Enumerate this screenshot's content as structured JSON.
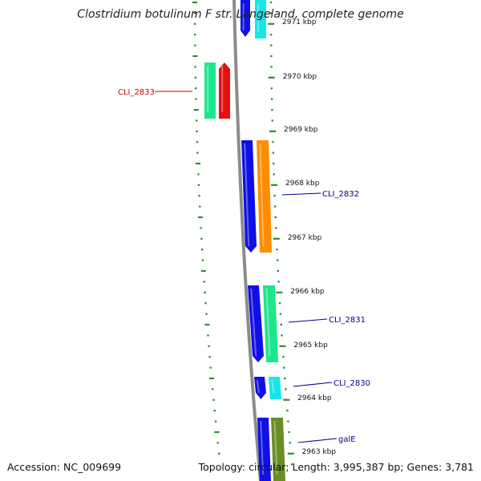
{
  "title": "Clostridium botulinum F str. Langeland, complete genome",
  "footer": {
    "accession": "Accession: NC_009699",
    "stats": "Topology: circular; Length: 3,995,387 bp; Genes: 3,781"
  },
  "colors": {
    "backbone": "#8c8c8c",
    "tick": "#2e8b2e",
    "forward_label": "#cc0000",
    "reverse_label": "#00008b",
    "cds_blue": "#1010e6",
    "cds_cyan": "#17e6e6",
    "cds_green": "#1ee68c",
    "cds_red": "#e61010",
    "cds_orange": "#ff8c00",
    "cds_olive": "#6b8e23"
  },
  "scale_labels": [
    {
      "kbp": 2971,
      "label": "2971 kbp"
    },
    {
      "kbp": 2970,
      "label": "2970 kbp"
    },
    {
      "kbp": 2969,
      "label": "2969 kbp"
    },
    {
      "kbp": 2968,
      "label": "2968 kbp"
    },
    {
      "kbp": 2967,
      "label": "2967 kbp"
    },
    {
      "kbp": 2966,
      "label": "2966 kbp"
    },
    {
      "kbp": 2965,
      "label": "2965 kbp"
    },
    {
      "kbp": 2964,
      "label": "2964 kbp"
    },
    {
      "kbp": 2963,
      "label": "2963 kbp"
    }
  ],
  "gene_labels": [
    {
      "name": "CLI_2833",
      "side": "left",
      "color": "#cc0000"
    },
    {
      "name": "CLI_2832",
      "side": "right",
      "color": "#00008b"
    },
    {
      "name": "CLI_2831",
      "side": "right",
      "color": "#00008b"
    },
    {
      "name": "CLI_2830",
      "side": "right",
      "color": "#00008b"
    },
    {
      "name": "galE",
      "side": "right",
      "color": "#00008b"
    }
  ]
}
